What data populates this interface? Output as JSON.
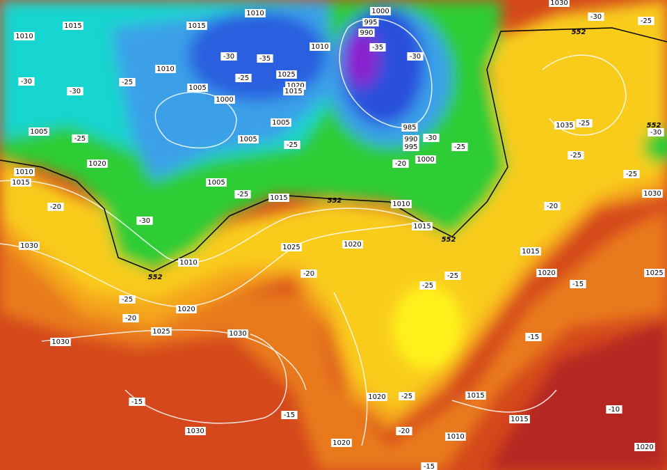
{
  "labels": {
    "pressure": [
      "1010",
      "1015",
      "1010",
      "1015",
      "1010",
      "1005",
      "1000",
      "1025",
      "1020",
      "1015",
      "1010",
      "1000",
      "995",
      "990",
      "1005",
      "1005",
      "1005",
      "985",
      "990",
      "995",
      "1000",
      "1020",
      "1010",
      "1015",
      "1005",
      "1015",
      "1010",
      "1015",
      "1020",
      "1025",
      "1030",
      "1010",
      "1020",
      "1025",
      "1030",
      "1030",
      "1035",
      "1030",
      "1015",
      "1020",
      "1025",
      "1020",
      "1015",
      "1015",
      "1010",
      "1020",
      "1030",
      "1020",
      "1030"
    ],
    "temperature": [
      "-30",
      "-30",
      "-25",
      "-30",
      "-35",
      "-25",
      "-35",
      "-30",
      "-25",
      "-25",
      "-30",
      "-25",
      "-20",
      "-25",
      "-20",
      "-30",
      "-20",
      "-25",
      "-20",
      "-25",
      "-25",
      "-20",
      "-15",
      "-15",
      "-25",
      "-25",
      "-25",
      "-30",
      "-25",
      "-30",
      "-15",
      "-15",
      "-25",
      "-20",
      "-10",
      "-15"
    ],
    "height": [
      "552",
      "552",
      "552",
      "552",
      "552"
    ]
  }
}
